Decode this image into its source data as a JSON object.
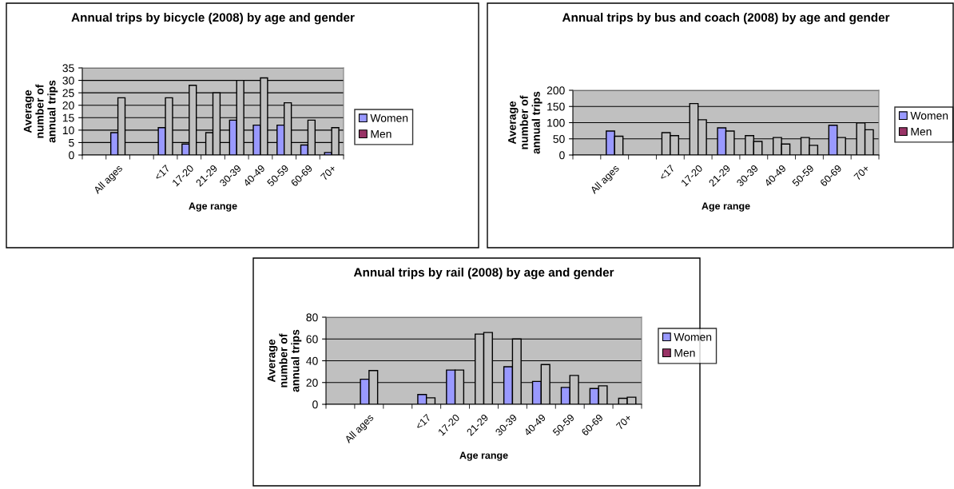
{
  "chart_data": [
    {
      "type": "bar",
      "title": "Annual trips by bicycle (2008) by age and gender",
      "xlabel": "Age range",
      "ylabel": "Average number of annual trips",
      "categories": [
        null,
        "All ages",
        null,
        "<17",
        "17-20",
        "21-29",
        "30-39",
        "40-49",
        "50-59",
        "60-69",
        "70+"
      ],
      "series": [
        {
          "name": "Women",
          "color": "#9999ff",
          "colors": [
            "#9999ff",
            "#9999ff",
            "#9999ff",
            "#9999ff",
            "#9999ff",
            "#c0c0c0",
            "#9999ff",
            "#9999ff",
            "#9999ff",
            "#9999ff",
            "#9999ff"
          ],
          "values": [
            null,
            9,
            null,
            11,
            4.4,
            9,
            14,
            12,
            12,
            4,
            1
          ]
        },
        {
          "name": "Men",
          "color": "#993366",
          "colors": [
            "#c0c0c0",
            "#c0c0c0",
            "#c0c0c0",
            "#c0c0c0",
            "#c0c0c0",
            "#c0c0c0",
            "#c0c0c0",
            "#c0c0c0",
            "#c0c0c0",
            "#c0c0c0",
            "#c0c0c0"
          ],
          "values": [
            null,
            23,
            null,
            23,
            28,
            25,
            30,
            31,
            21,
            14,
            11
          ]
        }
      ],
      "ylim": [
        0,
        35
      ],
      "yticks": [
        0,
        5,
        10,
        15,
        20,
        25,
        30,
        35
      ],
      "grid": "y",
      "legend": "right"
    },
    {
      "type": "bar",
      "title": "Annual trips by bus and coach (2008) by age and gender",
      "xlabel": "Age range",
      "ylabel": "Average number of annual trips",
      "categories": [
        null,
        "All ages",
        null,
        "<17",
        "17-20",
        "21-29",
        "30-39",
        "40-49",
        "50-59",
        "60-69",
        "70+"
      ],
      "series": [
        {
          "name": "Women",
          "color": "#9999ff",
          "colors": [
            "#9999ff",
            "#9999ff",
            "#9999ff",
            "#c0c0c0",
            "#c0c0c0",
            "#9999ff",
            "#c0c0c0",
            "#c0c0c0",
            "#c0c0c0",
            "#9999ff",
            "#c0c0c0"
          ],
          "values": [
            null,
            74,
            null,
            69,
            159,
            84,
            60,
            54,
            54,
            92,
            99
          ]
        },
        {
          "name": "Men",
          "color": "#993366",
          "colors": [
            "#c0c0c0",
            "#c0c0c0",
            "#c0c0c0",
            "#c0c0c0",
            "#c0c0c0",
            "#c0c0c0",
            "#c0c0c0",
            "#c0c0c0",
            "#c0c0c0",
            "#c0c0c0",
            "#c0c0c0"
          ],
          "values": [
            null,
            58,
            null,
            60,
            109,
            74,
            42,
            34,
            30,
            54,
            78
          ]
        }
      ],
      "ylim": [
        0,
        200
      ],
      "yticks": [
        0,
        50,
        100,
        150,
        200
      ],
      "grid": "y",
      "legend": "right"
    },
    {
      "type": "bar",
      "title": "Annual trips by rail (2008) by age and gender",
      "xlabel": "Age range",
      "ylabel": "Average number of annual trips",
      "categories": [
        null,
        "All ages",
        null,
        "<17",
        "17-20",
        "21-29",
        "30-39",
        "40-49",
        "50-59",
        "60-69",
        "70+"
      ],
      "series": [
        {
          "name": "Women",
          "color": "#9999ff",
          "colors": [
            "#9999ff",
            "#9999ff",
            "#9999ff",
            "#9999ff",
            "#9999ff",
            "#c0c0c0",
            "#9999ff",
            "#9999ff",
            "#9999ff",
            "#9999ff",
            "#c0c0c0"
          ],
          "values": [
            null,
            23,
            null,
            9,
            31.5,
            64.5,
            34.5,
            21,
            15.5,
            14.5,
            5.5
          ]
        },
        {
          "name": "Men",
          "color": "#993366",
          "colors": [
            "#c0c0c0",
            "#c0c0c0",
            "#c0c0c0",
            "#c0c0c0",
            "#c0c0c0",
            "#c0c0c0",
            "#c0c0c0",
            "#c0c0c0",
            "#c0c0c0",
            "#c0c0c0",
            "#c0c0c0"
          ],
          "values": [
            null,
            31,
            null,
            6,
            31.5,
            66,
            60,
            36.5,
            26.5,
            17,
            6.5
          ]
        }
      ],
      "ylim": [
        0,
        80
      ],
      "yticks": [
        0,
        20,
        40,
        60,
        80
      ],
      "grid": "y",
      "legend": "right"
    }
  ]
}
